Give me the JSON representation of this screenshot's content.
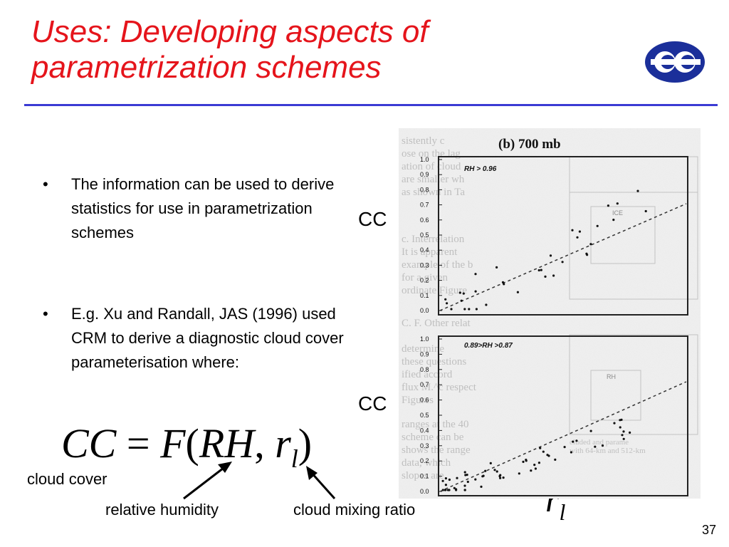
{
  "slide": {
    "title": "Uses: Developing aspects of parametrization schemes",
    "bullets": [
      "The information can be used to derive statistics for use in parametrization schemes",
      "E.g. Xu and Randall, JAS (1996) used CRM to derive a diagnostic cloud cover parameterisation where:"
    ],
    "cc_label_top": "CC",
    "cc_label_bottom": "CC",
    "equation": {
      "lhs": "CC",
      "equals": "=",
      "func": "F",
      "open": "(",
      "arg1": "RH",
      "comma": ",",
      "arg2": "r",
      "arg2_sub": "l",
      "close": ")"
    },
    "annotations": {
      "cloud_cover": "cloud cover",
      "relative_humidity": "relative humidity",
      "cloud_mixing_ratio": "cloud mixing ratio"
    },
    "rl_axis_label": {
      "symbol": "r",
      "sub": "l"
    },
    "page_number": "37",
    "accent_colors": {
      "title": "#e5141b",
      "rule": "#3b3bd4",
      "logo": "#1b2f9a"
    }
  },
  "figure": {
    "header": "(b) 700 mb",
    "y_tick_labels": [
      "1.0",
      "0.9",
      "0.8",
      "0.7",
      "0.6",
      "0.5",
      "0.4",
      "0.3",
      "0.2",
      "0.1",
      "0.0"
    ],
    "panel_top_condition": "RH > 0.96",
    "panel_bottom_condition": "0.89>RH >0.87",
    "scanned_text_fragments": [
      "sistently c",
      "ose on the lag",
      "ation of cloud",
      "are smaller wh",
      "as shown in Ta",
      "c. Interrelation",
      "It is apparent",
      "example of the b",
      "for a given",
      "ordinate Figure",
      "C. F. Other relat",
      "determine",
      "these questions",
      "ified accord",
      "flux M.^c respect",
      "Figures",
      "ranges at the 40",
      "scheme can be",
      "shows the range",
      "data, which",
      "slopes are",
      "cluded and parame",
      "with 64-km and 512-km"
    ],
    "legend_words": [
      "RH",
      "ICE"
    ]
  }
}
